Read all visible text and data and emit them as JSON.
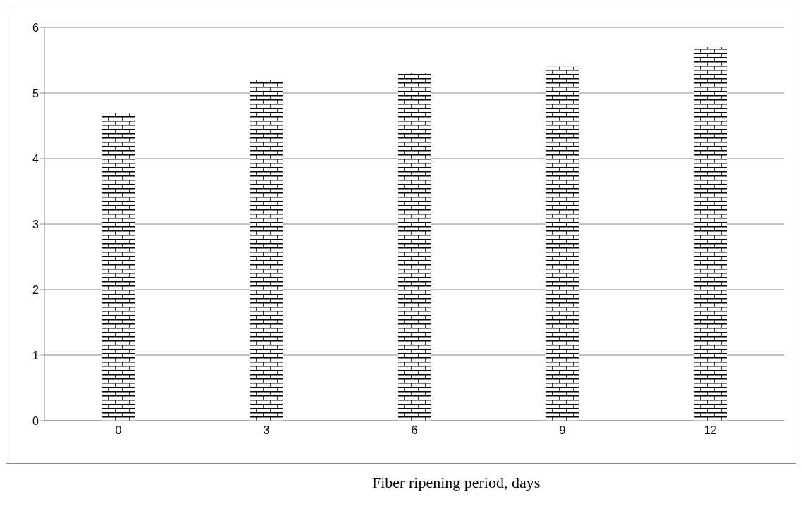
{
  "chart_data": {
    "type": "bar",
    "xlabel": "Fiber ripening period, days",
    "categories": [
      "0",
      "3",
      "6",
      "9",
      "12"
    ],
    "values": [
      4.7,
      5.2,
      5.3,
      5.4,
      5.7
    ],
    "color": "#000000",
    "ylim": [
      0,
      6
    ],
    "yticks": [
      0,
      1,
      2,
      3,
      4,
      5,
      6
    ],
    "grid": "y"
  }
}
